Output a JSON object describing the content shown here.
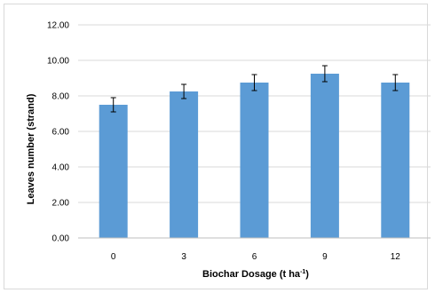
{
  "chart_data": {
    "type": "bar",
    "categories": [
      "0",
      "3",
      "6",
      "9",
      "12"
    ],
    "values": [
      7.5,
      8.25,
      8.75,
      9.25,
      8.75
    ],
    "error": [
      0.4,
      0.4,
      0.45,
      0.45,
      0.45
    ],
    "xlabel": "Biochar Dosage (t ha",
    "xlabel_sup": "-1",
    "xlabel_end": ")",
    "ylabel": "Leaves number (strand)",
    "ylim": [
      0,
      12
    ],
    "yticks": [
      "0.00",
      "2.00",
      "4.00",
      "6.00",
      "8.00",
      "10.00",
      "12.00"
    ],
    "grid": true,
    "bar_color": "#5b9bd5",
    "grid_color": "#d9d9d9"
  }
}
